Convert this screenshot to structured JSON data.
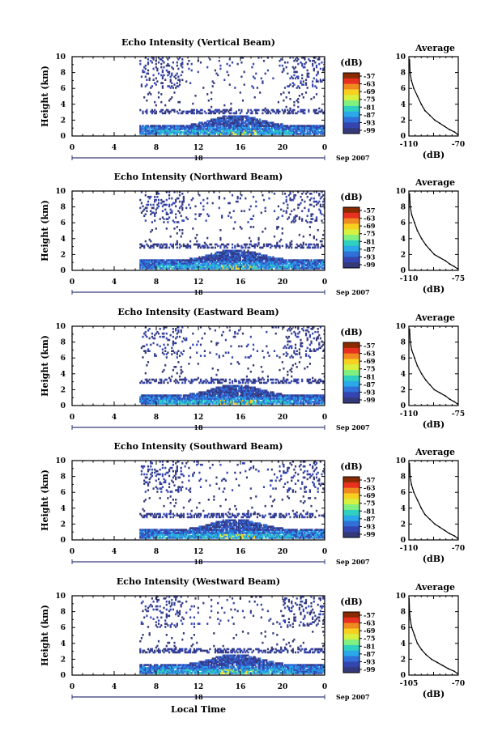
{
  "figure": {
    "xlabel": "Local Time",
    "date_label": "Sep 2007",
    "colorbar_unit": "(dB)",
    "colorbar_ticks": [
      "-57",
      "-63",
      "-69",
      "-75",
      "-81",
      "-87",
      "-93",
      "-99"
    ],
    "colorbar_colors": [
      "#8a2a00",
      "#e83020",
      "#f08a20",
      "#f8d020",
      "#d8f040",
      "#80f080",
      "#30d0c0",
      "#2aa8e8",
      "#3070d8",
      "#3545b0",
      "#34397a"
    ],
    "avg_title": "Average",
    "avg_xlabel": "(dB)",
    "ylabel": "Height (km)"
  },
  "chart_data": [
    {
      "type": "heatmap",
      "title": "Echo Intensity (Vertical Beam)",
      "xlabel": "",
      "ylabel": "Height (km)",
      "x_ticks": [
        "0",
        "4",
        "8",
        "12",
        "16",
        "20",
        "0"
      ],
      "y_ticks": [
        "0",
        "2",
        "4",
        "6",
        "8",
        "10"
      ],
      "xlim": [
        0,
        24
      ],
      "ylim": [
        0,
        10
      ],
      "day_label": "18",
      "colorbar": {
        "unit": "(dB)",
        "ticks": [
          -57,
          -63,
          -69,
          -75,
          -81,
          -87,
          -93,
          -99
        ]
      },
      "average_profile": {
        "type": "line",
        "title": "Average",
        "xlabel": "(dB)",
        "x_ticks": [
          "-110",
          "-70"
        ],
        "y_ticks": [
          "0",
          "2",
          "4",
          "6",
          "8",
          "10"
        ],
        "xlim": [
          -110,
          -70
        ],
        "ylim": [
          0,
          10
        ],
        "x": [
          -70.5,
          -73,
          -77,
          -81,
          -85,
          -89,
          -93,
          -97,
          -100,
          -103,
          -106,
          -108,
          -109,
          -109.5
        ],
        "y": [
          0.2,
          0.5,
          0.8,
          1.2,
          1.6,
          2.0,
          2.6,
          3.2,
          4.0,
          5.0,
          6.0,
          7.0,
          8.0,
          9.6
        ]
      }
    },
    {
      "type": "heatmap",
      "title": "Echo Intensity (Northward Beam)",
      "xlabel": "",
      "ylabel": "Height (km)",
      "x_ticks": [
        "0",
        "4",
        "8",
        "12",
        "16",
        "20",
        "0"
      ],
      "y_ticks": [
        "0",
        "2",
        "4",
        "6",
        "8",
        "10"
      ],
      "xlim": [
        0,
        24
      ],
      "ylim": [
        0,
        10
      ],
      "day_label": "18",
      "colorbar": {
        "unit": "(dB)",
        "ticks": [
          -57,
          -63,
          -69,
          -75,
          -81,
          -87,
          -93,
          -99
        ]
      },
      "average_profile": {
        "type": "line",
        "title": "Average",
        "xlabel": "(dB)",
        "x_ticks": [
          "-110",
          "-75"
        ],
        "y_ticks": [
          "0",
          "2",
          "4",
          "6",
          "8",
          "10"
        ],
        "xlim": [
          -110,
          -75
        ],
        "ylim": [
          0,
          10
        ],
        "x": [
          -75.5,
          -78,
          -81,
          -84,
          -88,
          -92,
          -95,
          -98,
          -101,
          -104,
          -106,
          -108,
          -109,
          -109.5
        ],
        "y": [
          0.2,
          0.5,
          0.8,
          1.2,
          1.6,
          2.0,
          2.6,
          3.2,
          4.0,
          5.0,
          6.0,
          7.0,
          8.0,
          9.6
        ]
      }
    },
    {
      "type": "heatmap",
      "title": "Echo Intensity (Eastward Beam)",
      "xlabel": "",
      "ylabel": "Height (km)",
      "x_ticks": [
        "0",
        "4",
        "8",
        "12",
        "16",
        "20",
        "0"
      ],
      "y_ticks": [
        "0",
        "2",
        "4",
        "6",
        "8",
        "10"
      ],
      "xlim": [
        0,
        24
      ],
      "ylim": [
        0,
        10
      ],
      "day_label": "18",
      "colorbar": {
        "unit": "(dB)",
        "ticks": [
          -57,
          -63,
          -69,
          -75,
          -81,
          -87,
          -93,
          -99
        ]
      },
      "average_profile": {
        "type": "line",
        "title": "Average",
        "xlabel": "(dB)",
        "x_ticks": [
          "-110",
          "-75"
        ],
        "y_ticks": [
          "0",
          "2",
          "4",
          "6",
          "8",
          "10"
        ],
        "xlim": [
          -110,
          -75
        ],
        "ylim": [
          0,
          10
        ],
        "x": [
          -75.5,
          -78,
          -81,
          -84,
          -88,
          -92,
          -95,
          -98,
          -101,
          -104,
          -106,
          -108,
          -109,
          -109.5
        ],
        "y": [
          0.2,
          0.5,
          0.8,
          1.2,
          1.6,
          2.0,
          2.6,
          3.2,
          4.0,
          5.0,
          6.0,
          7.0,
          8.0,
          9.6
        ]
      }
    },
    {
      "type": "heatmap",
      "title": "Echo Intensity (Southward Beam)",
      "xlabel": "",
      "ylabel": "Height (km)",
      "x_ticks": [
        "0",
        "4",
        "8",
        "12",
        "16",
        "20",
        "0"
      ],
      "y_ticks": [
        "0",
        "2",
        "4",
        "6",
        "8",
        "10"
      ],
      "xlim": [
        0,
        24
      ],
      "ylim": [
        0,
        10
      ],
      "day_label": "18",
      "colorbar": {
        "unit": "(dB)",
        "ticks": [
          -57,
          -63,
          -69,
          -75,
          -81,
          -87,
          -93,
          -99
        ]
      },
      "average_profile": {
        "type": "line",
        "title": "Average",
        "xlabel": "(dB)",
        "x_ticks": [
          "-110",
          "-70"
        ],
        "y_ticks": [
          "0",
          "2",
          "4",
          "6",
          "8",
          "10"
        ],
        "xlim": [
          -110,
          -70
        ],
        "ylim": [
          0,
          10
        ],
        "x": [
          -70.5,
          -73,
          -77,
          -81,
          -85,
          -89,
          -93,
          -97,
          -100,
          -103,
          -106,
          -108,
          -109,
          -109.5
        ],
        "y": [
          0.2,
          0.5,
          0.8,
          1.2,
          1.6,
          2.0,
          2.6,
          3.2,
          4.0,
          5.0,
          6.0,
          7.0,
          8.0,
          9.6
        ]
      }
    },
    {
      "type": "heatmap",
      "title": "Echo Intensity (Westward Beam)",
      "xlabel": "Local Time",
      "ylabel": "Height (km)",
      "x_ticks": [
        "0",
        "4",
        "8",
        "12",
        "16",
        "20",
        "0"
      ],
      "y_ticks": [
        "0",
        "2",
        "4",
        "6",
        "8",
        "10"
      ],
      "xlim": [
        0,
        24
      ],
      "ylim": [
        0,
        10
      ],
      "day_label": "18",
      "colorbar": {
        "unit": "(dB)",
        "ticks": [
          -57,
          -63,
          -69,
          -75,
          -81,
          -87,
          -93,
          -99
        ]
      },
      "average_profile": {
        "type": "line",
        "title": "Average",
        "xlabel": "(dB)",
        "x_ticks": [
          "-105",
          "-70"
        ],
        "y_ticks": [
          "0",
          "2",
          "4",
          "6",
          "8",
          "10"
        ],
        "xlim": [
          -105,
          -70
        ],
        "ylim": [
          0,
          10
        ],
        "x": [
          -70.5,
          -73,
          -77,
          -81,
          -85,
          -89,
          -93,
          -96,
          -99,
          -101,
          -103,
          -104,
          -104.5,
          -104.8
        ],
        "y": [
          0.2,
          0.5,
          0.8,
          1.2,
          1.6,
          2.0,
          2.6,
          3.2,
          4.0,
          5.0,
          6.0,
          7.0,
          8.0,
          9.6
        ]
      }
    }
  ]
}
